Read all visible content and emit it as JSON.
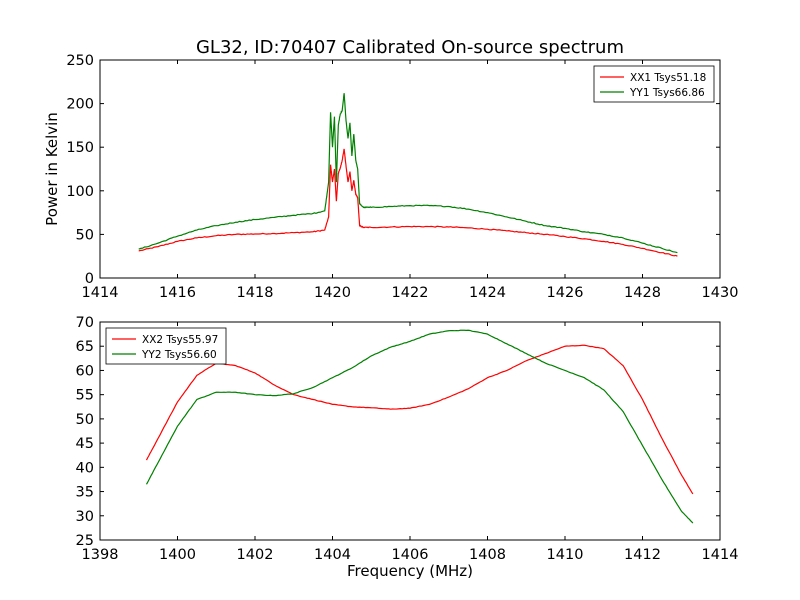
{
  "title": "GL32, ID:70407 Calibrated On-source spectrum",
  "chart_data": [
    {
      "type": "line",
      "xlim": [
        1414,
        1430
      ],
      "ylim": [
        0,
        250
      ],
      "xticks": [
        "1414",
        "1416",
        "1418",
        "1420",
        "1422",
        "1424",
        "1426",
        "1428",
        "1430"
      ],
      "yticks": [
        "0",
        "50",
        "100",
        "150",
        "200",
        "250"
      ],
      "xlabel": "",
      "ylabel": "Power in Kelvin",
      "legend_position": "top-right",
      "series": [
        {
          "name": "XX1 Tsys51.18",
          "color": "#ff0000",
          "x": [
            1415.0,
            1415.5,
            1416.0,
            1416.5,
            1417.0,
            1417.5,
            1418.0,
            1418.5,
            1419.0,
            1419.5,
            1419.8,
            1419.9,
            1419.95,
            1420.0,
            1420.05,
            1420.1,
            1420.15,
            1420.2,
            1420.25,
            1420.3,
            1420.35,
            1420.4,
            1420.45,
            1420.5,
            1420.55,
            1420.6,
            1420.65,
            1420.7,
            1420.8,
            1421.0,
            1421.5,
            1422.0,
            1422.5,
            1423.0,
            1423.5,
            1424.0,
            1424.5,
            1425.0,
            1425.5,
            1426.0,
            1426.5,
            1427.0,
            1427.5,
            1428.0,
            1428.5,
            1428.9
          ],
          "y": [
            31,
            36,
            42,
            46,
            48.5,
            50,
            50.5,
            51,
            52,
            53,
            55,
            70,
            130,
            110,
            125,
            88,
            120,
            126,
            135,
            148,
            128,
            110,
            122,
            100,
            112,
            96,
            92,
            60,
            58,
            58,
            58.5,
            59,
            59,
            58.5,
            57.5,
            56,
            54,
            52,
            50,
            47.5,
            45,
            42,
            38.5,
            34,
            29,
            25
          ]
        },
        {
          "name": "YY1 Tsys66.86",
          "color": "#008000",
          "x": [
            1415.0,
            1415.5,
            1416.0,
            1416.5,
            1417.0,
            1417.5,
            1418.0,
            1418.5,
            1419.0,
            1419.5,
            1419.8,
            1419.9,
            1419.95,
            1420.0,
            1420.05,
            1420.1,
            1420.15,
            1420.2,
            1420.25,
            1420.3,
            1420.35,
            1420.4,
            1420.45,
            1420.5,
            1420.55,
            1420.6,
            1420.65,
            1420.7,
            1420.8,
            1421.0,
            1421.5,
            1422.0,
            1422.5,
            1423.0,
            1423.5,
            1424.0,
            1424.5,
            1425.0,
            1425.5,
            1426.0,
            1426.5,
            1427.0,
            1427.5,
            1428.0,
            1428.5,
            1428.9
          ],
          "y": [
            33,
            40,
            48,
            55,
            60,
            64,
            67,
            69.5,
            72,
            74,
            77,
            110,
            190,
            150,
            185,
            110,
            175,
            188,
            192,
            212,
            180,
            160,
            178,
            140,
            165,
            135,
            125,
            85,
            81,
            81,
            82,
            83,
            83,
            82,
            79,
            75,
            70,
            65,
            60,
            57,
            53,
            50,
            46,
            40,
            34,
            29
          ]
        }
      ]
    },
    {
      "type": "line",
      "xlim": [
        1398,
        1414
      ],
      "ylim": [
        25,
        70
      ],
      "xticks": [
        "1398",
        "1400",
        "1402",
        "1404",
        "1406",
        "1408",
        "1410",
        "1412",
        "1414"
      ],
      "yticks": [
        "25",
        "30",
        "35",
        "40",
        "45",
        "50",
        "55",
        "60",
        "65",
        "70"
      ],
      "xlabel": "Frequency (MHz)",
      "ylabel": "",
      "legend_position": "top-left",
      "series": [
        {
          "name": "XX2 Tsys55.97",
          "color": "#ff0000",
          "x": [
            1399.2,
            1399.5,
            1400.0,
            1400.5,
            1401.0,
            1401.5,
            1402.0,
            1402.5,
            1403.0,
            1403.5,
            1404.0,
            1404.5,
            1405.0,
            1405.5,
            1406.0,
            1406.5,
            1407.0,
            1407.5,
            1408.0,
            1408.5,
            1409.0,
            1409.5,
            1410.0,
            1410.5,
            1411.0,
            1411.5,
            1412.0,
            1412.5,
            1413.0,
            1413.3
          ],
          "y": [
            41.5,
            46,
            53.5,
            59,
            61.5,
            61,
            59.5,
            57,
            55,
            54,
            53,
            52.5,
            52.3,
            52,
            52.2,
            53,
            54.5,
            56.2,
            58.5,
            60,
            62,
            63.5,
            65,
            65.2,
            64.5,
            61,
            54,
            46,
            38.5,
            34.5
          ]
        },
        {
          "name": "YY2 Tsys56.60",
          "color": "#008000",
          "x": [
            1399.2,
            1399.5,
            1400.0,
            1400.5,
            1401.0,
            1401.5,
            1402.0,
            1402.5,
            1403.0,
            1403.5,
            1404.0,
            1404.5,
            1405.0,
            1405.5,
            1406.0,
            1406.5,
            1407.0,
            1407.5,
            1408.0,
            1408.5,
            1409.0,
            1409.5,
            1410.0,
            1410.5,
            1411.0,
            1411.5,
            1412.0,
            1412.5,
            1413.0,
            1413.3
          ],
          "y": [
            36.5,
            41,
            48.5,
            54,
            55.5,
            55.5,
            55,
            54.8,
            55.2,
            56.5,
            58.5,
            60.5,
            63,
            64.8,
            66,
            67.5,
            68.2,
            68.3,
            67.5,
            65.5,
            63.5,
            61.5,
            60,
            58.5,
            56,
            51.5,
            44.5,
            37.5,
            31,
            28.5
          ]
        }
      ]
    }
  ]
}
